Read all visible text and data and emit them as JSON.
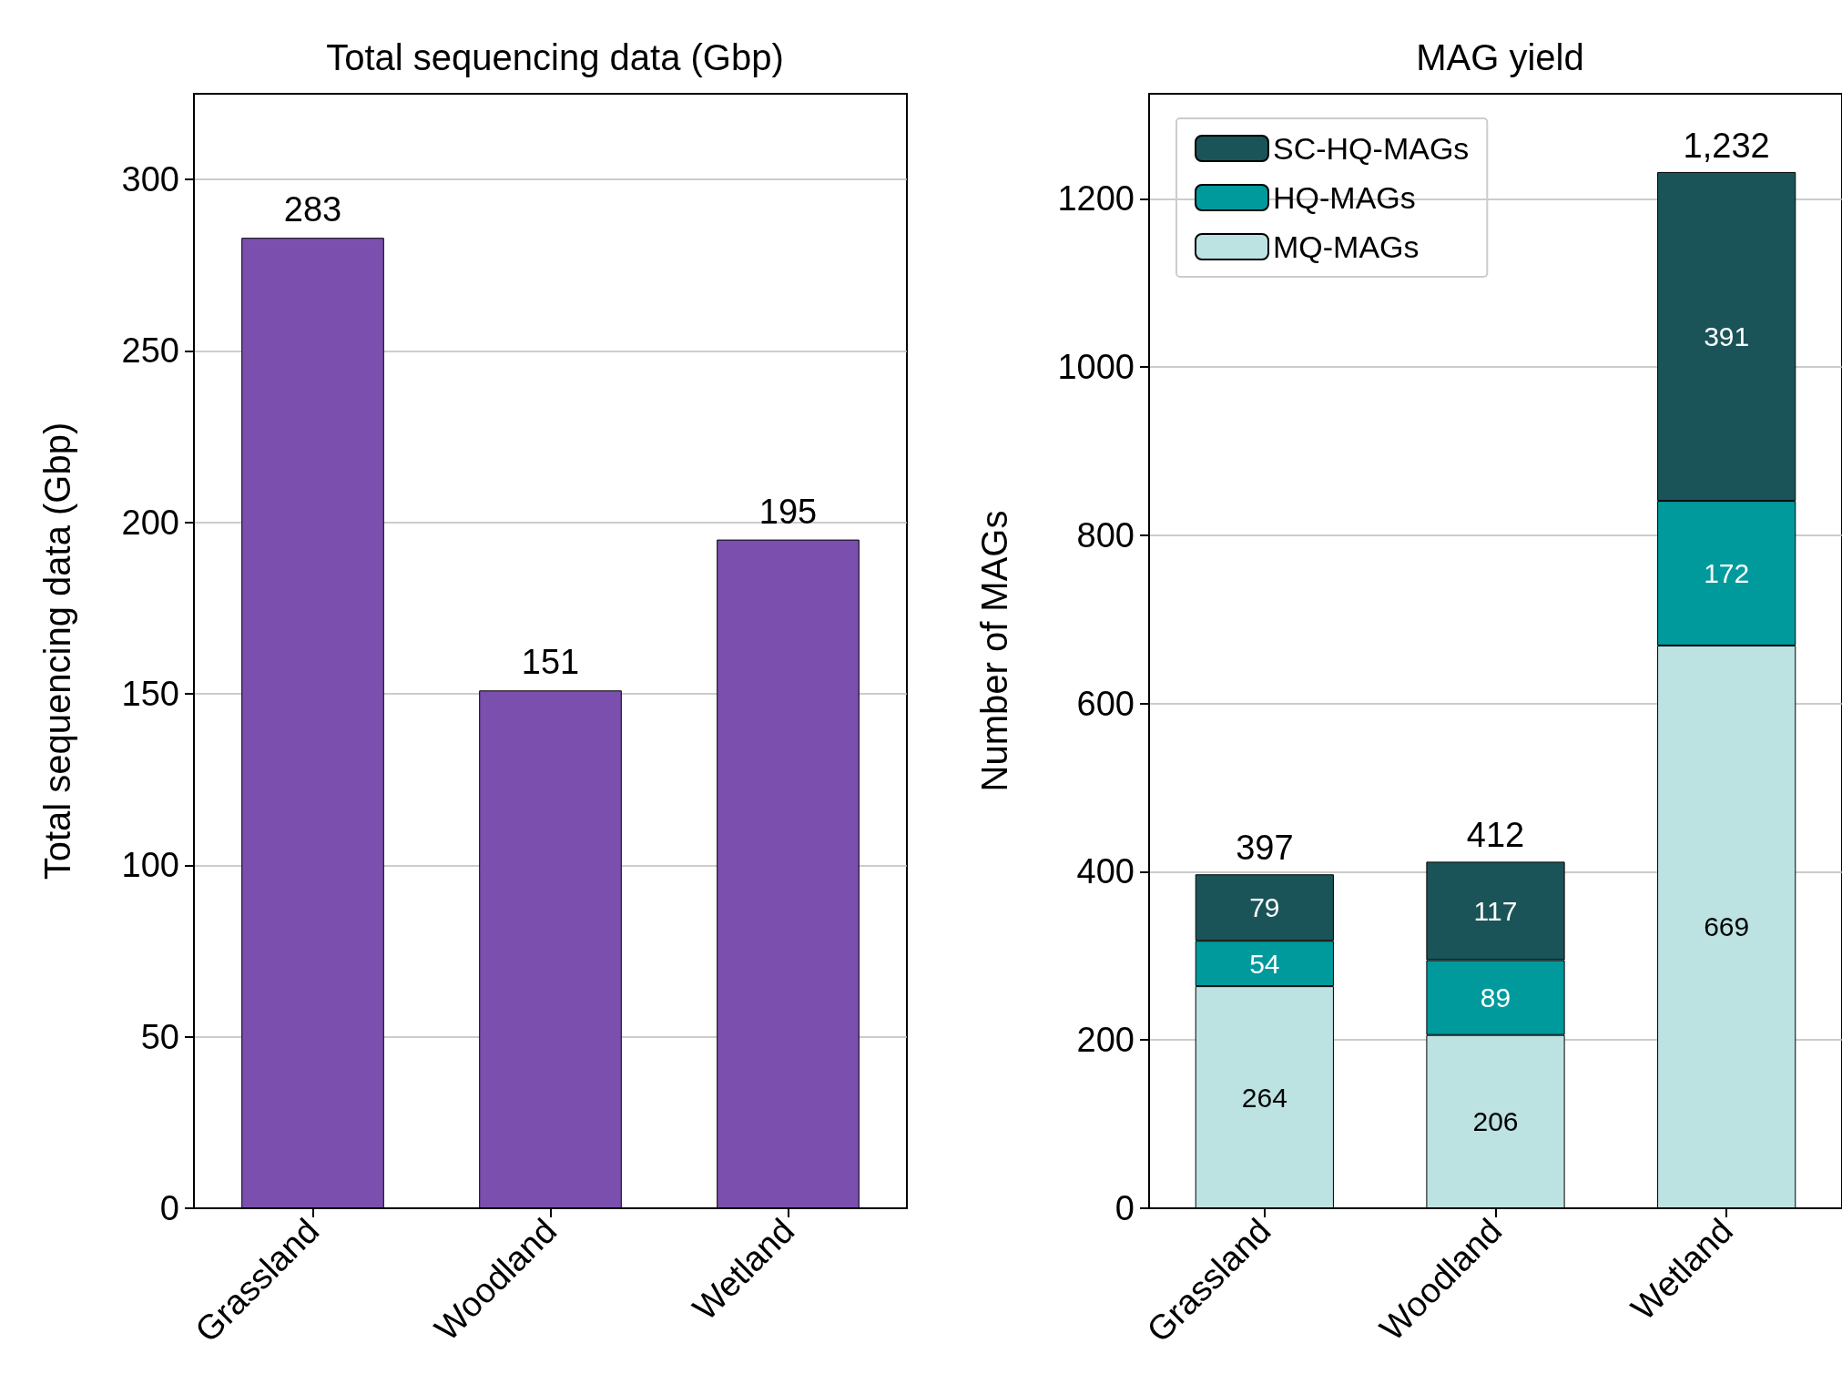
{
  "chart_data": [
    {
      "type": "bar",
      "title": "Total sequencing data (Gbp)",
      "ylabel": "Total sequencing data (Gbp)",
      "categories": [
        "Grassland",
        "Woodland",
        "Wetland"
      ],
      "series": [
        {
          "color": "#7b4fae",
          "values": [
            283,
            151,
            195
          ]
        }
      ],
      "ylim": [
        0,
        325
      ],
      "yticks": [
        0,
        50,
        100,
        150,
        200,
        250,
        300
      ],
      "grid": "y",
      "data_labels": true,
      "legend": false
    },
    {
      "type": "bar",
      "title": "MAG yield",
      "ylabel": "Number of MAGs",
      "categories": [
        "Grassland",
        "Woodland",
        "Wetland"
      ],
      "stacked": true,
      "series": [
        {
          "name": "MQ-MAGs",
          "color": "#bde2e2",
          "values": [
            264,
            206,
            669
          ]
        },
        {
          "name": "HQ-MAGs",
          "color": "#009a9c",
          "values": [
            54,
            89,
            172
          ]
        },
        {
          "name": "SC-HQ-MAGs",
          "color": "#1a5458",
          "values": [
            79,
            117,
            391
          ]
        }
      ],
      "totals": [
        "397",
        "412",
        "1,232"
      ],
      "ylim": [
        0,
        1325
      ],
      "yticks": [
        0,
        200,
        400,
        600,
        800,
        1000,
        1200
      ],
      "grid": "y",
      "data_labels": true,
      "legend": "top left"
    }
  ]
}
